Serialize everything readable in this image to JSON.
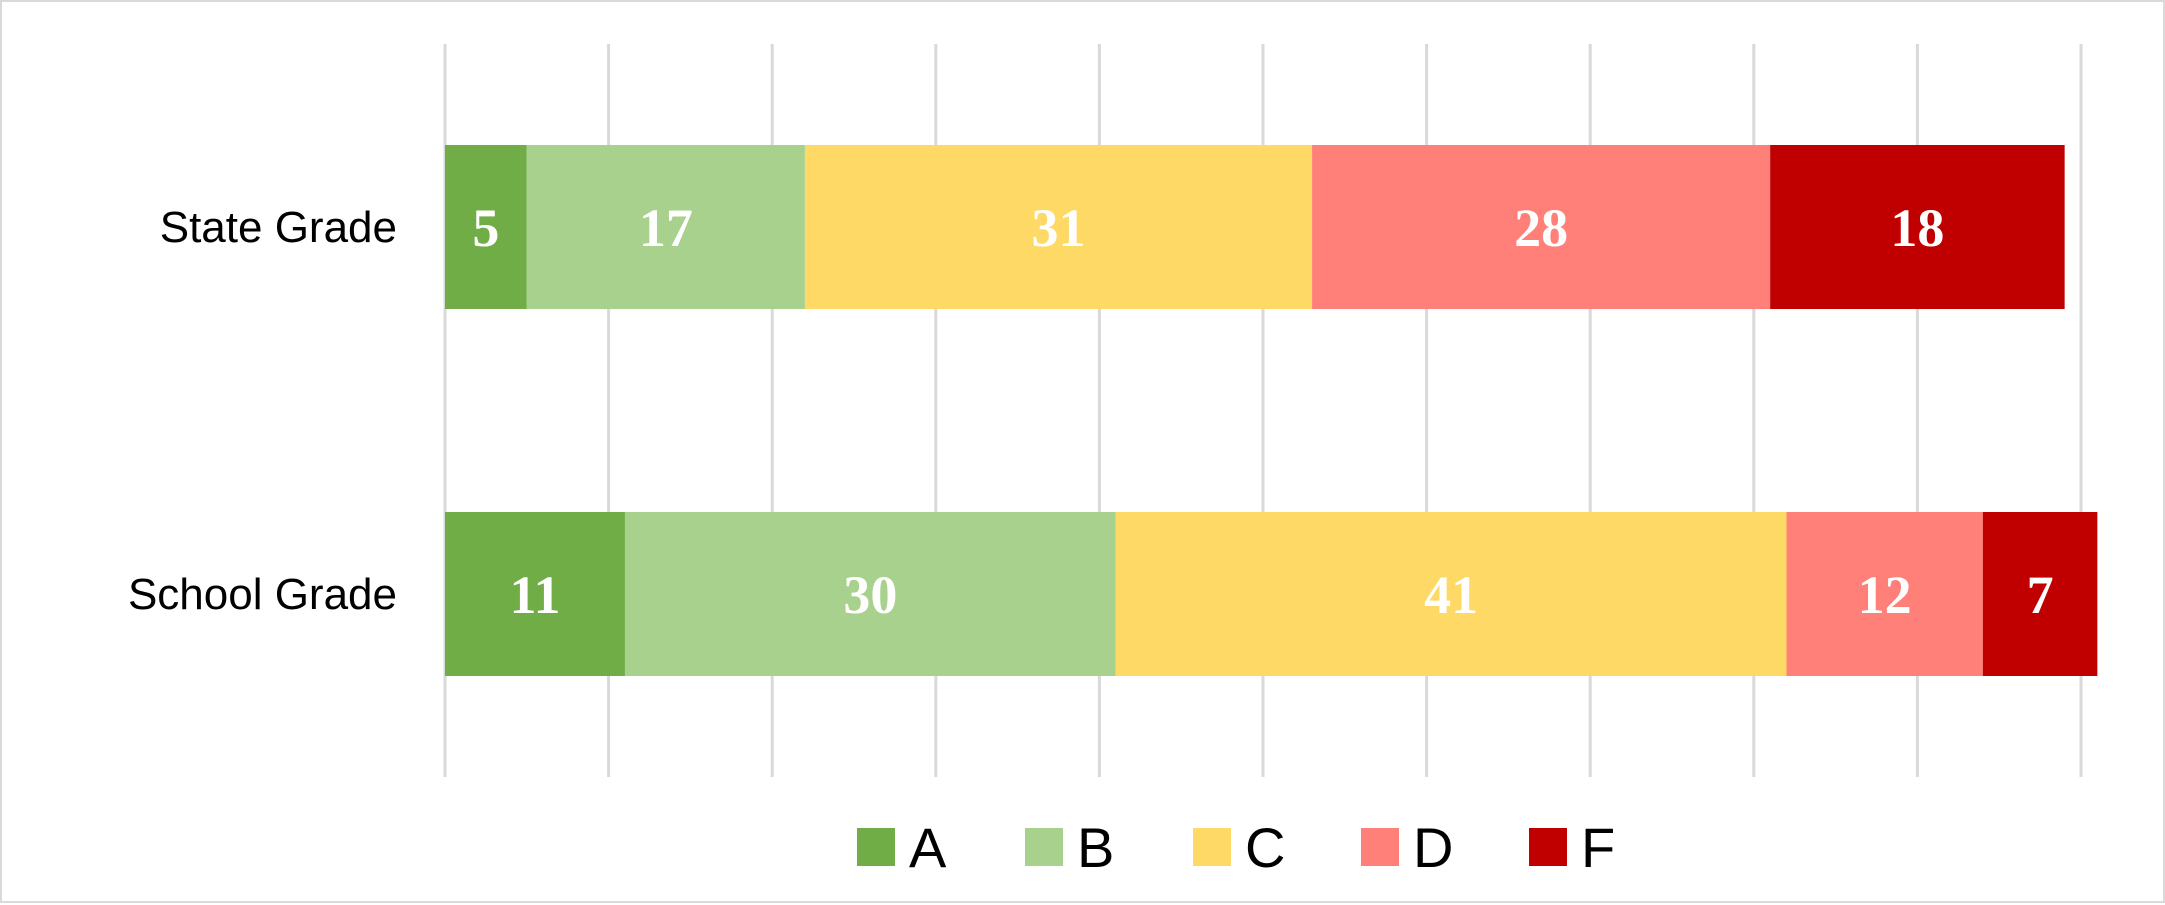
{
  "chart_data": {
    "type": "bar",
    "orientation": "horizontal",
    "stacked": true,
    "categories": [
      "State Grade",
      "School Grade"
    ],
    "series": [
      {
        "name": "A",
        "color": "#70ad47",
        "values": [
          5,
          11
        ]
      },
      {
        "name": "B",
        "color": "#a9d18e",
        "values": [
          17,
          30
        ]
      },
      {
        "name": "C",
        "color": "#ffd966",
        "values": [
          31,
          41
        ]
      },
      {
        "name": "D",
        "color": "#ff7f79",
        "values": [
          28,
          12
        ]
      },
      {
        "name": "F",
        "color": "#c00000",
        "values": [
          18,
          7
        ]
      }
    ],
    "title": "",
    "xlabel": "",
    "ylabel": "",
    "xlim": [
      0,
      100
    ],
    "grid": true,
    "legend": "bottom"
  }
}
